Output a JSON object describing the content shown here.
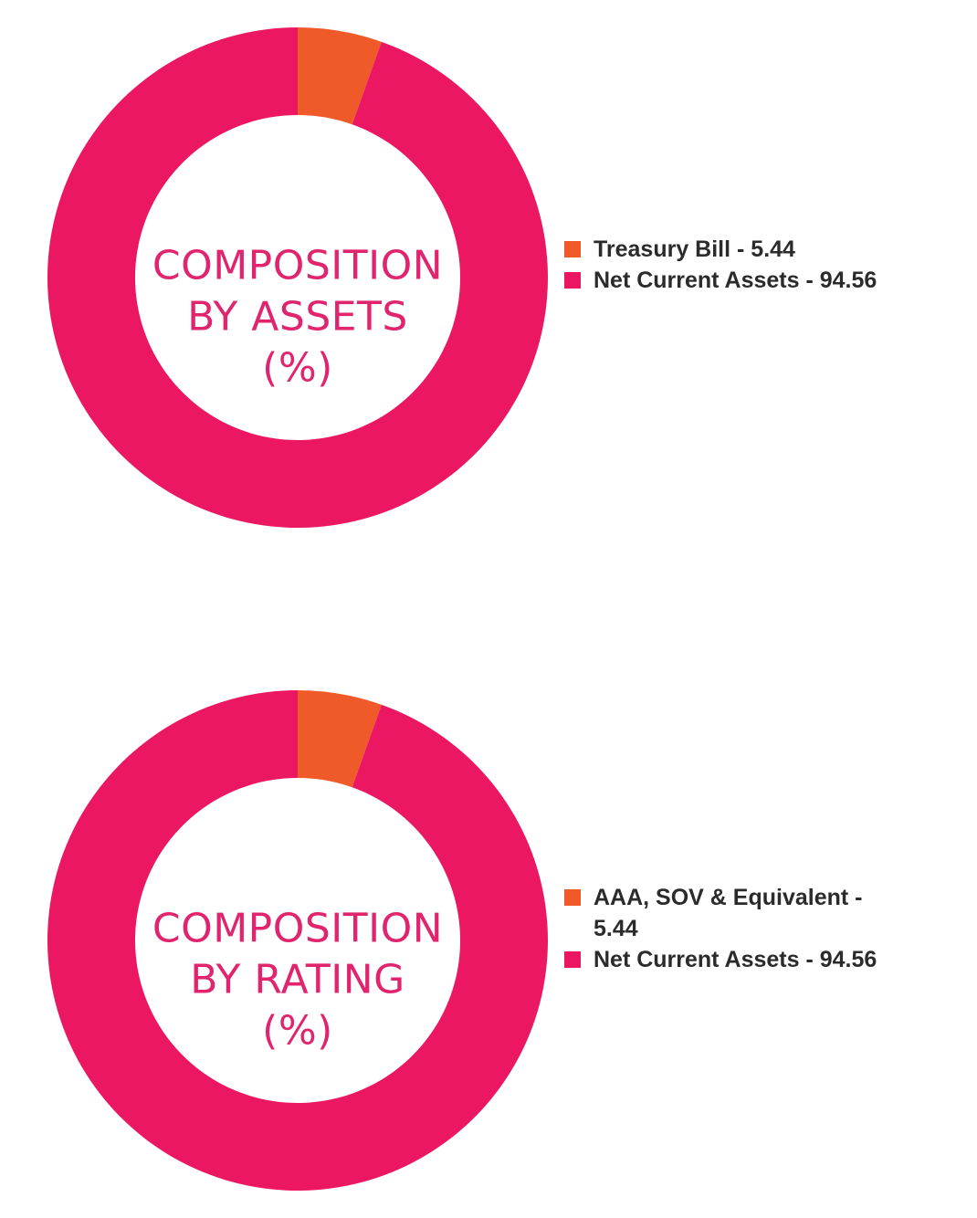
{
  "colors": {
    "orange": "#f05a28",
    "pink": "#ec1763",
    "title": "#e0246e"
  },
  "chart_data": [
    {
      "type": "pie",
      "variant": "donut",
      "title_lines": [
        "COMPOSITION",
        "BY ASSETS",
        "(%)"
      ],
      "categories": [
        "Treasury Bill",
        "Net Current Assets"
      ],
      "values": [
        5.44,
        94.56
      ],
      "legend_labels": [
        "Treasury Bill - 5.44",
        "Net Current Assets - 94.56"
      ],
      "colors": [
        "#f05a28",
        "#ec1763"
      ],
      "legend_position": "right"
    },
    {
      "type": "pie",
      "variant": "donut",
      "title_lines": [
        "COMPOSITION",
        "BY RATING",
        "(%)"
      ],
      "categories": [
        "AAA, SOV & Equivalent",
        "Net Current Assets"
      ],
      "values": [
        5.44,
        94.56
      ],
      "legend_labels": [
        "AAA, SOV & Equivalent - 5.44",
        "Net Current Assets - 94.56"
      ],
      "colors": [
        "#f05a28",
        "#ec1763"
      ],
      "legend_position": "right"
    }
  ]
}
